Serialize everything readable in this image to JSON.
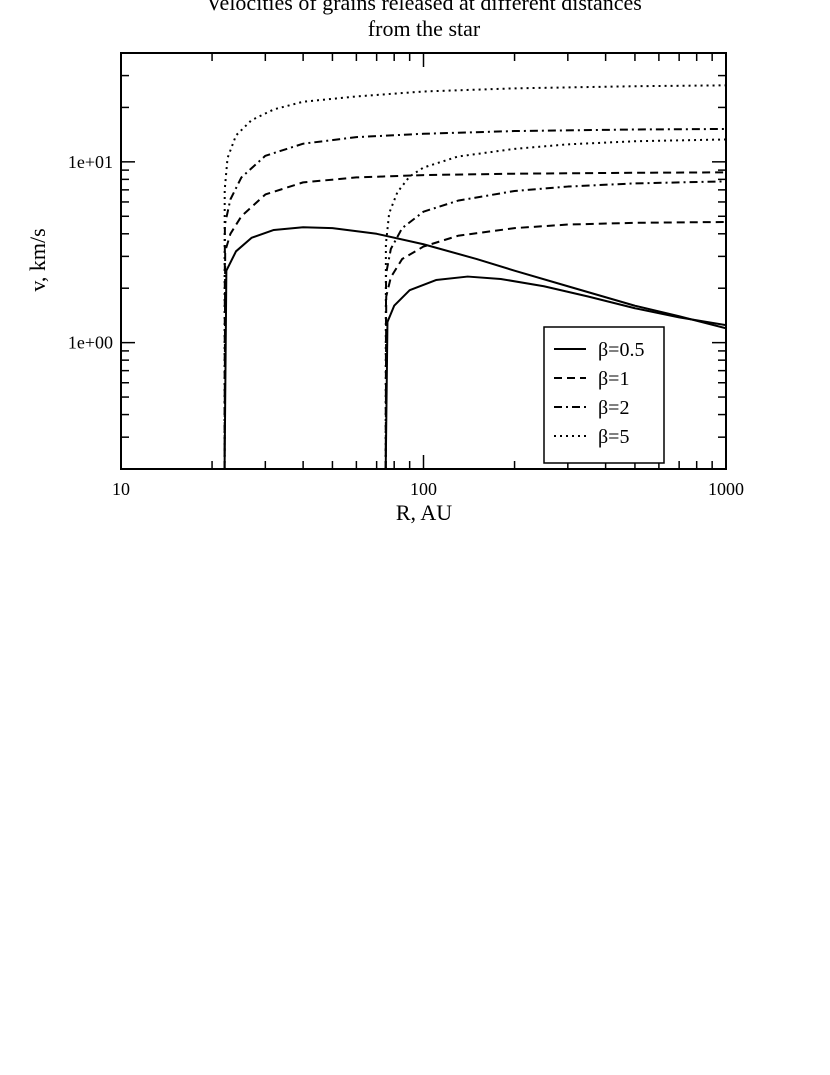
{
  "chart_data": {
    "type": "line",
    "title_line1": "Velocities  of grains released at different distances",
    "title_line2": "from the star",
    "xlabel": "R, AU",
    "ylabel": "v, km/s",
    "xscale": "log",
    "yscale": "log",
    "xlim": [
      10,
      1000
    ],
    "ylim": [
      0.2,
      40
    ],
    "x_ticks": [
      {
        "value": 10,
        "label": "10"
      },
      {
        "value": 100,
        "label": "100"
      },
      {
        "value": 1000,
        "label": "1000"
      }
    ],
    "y_ticks": [
      {
        "value": 1,
        "label": "1e+00"
      },
      {
        "value": 10,
        "label": "1e+01"
      }
    ],
    "grid": false,
    "legend_position": "bottom-right",
    "legend": [
      {
        "label": "β=0.5",
        "style": "solid"
      },
      {
        "label": "β=1",
        "style": "dashed"
      },
      {
        "label": "β=2",
        "style": "dashdot"
      },
      {
        "label": "β=5",
        "style": "dotted"
      }
    ],
    "series": [
      {
        "beta": 0.5,
        "release_R": 22,
        "style": "solid",
        "points": [
          [
            22,
            0.2
          ],
          [
            22.3,
            2.5
          ],
          [
            24,
            3.2
          ],
          [
            27,
            3.8
          ],
          [
            32,
            4.2
          ],
          [
            40,
            4.35
          ],
          [
            50,
            4.3
          ],
          [
            70,
            4.0
          ],
          [
            100,
            3.5
          ],
          [
            150,
            2.9
          ],
          [
            200,
            2.5
          ],
          [
            300,
            2.05
          ],
          [
            500,
            1.6
          ],
          [
            700,
            1.4
          ],
          [
            1000,
            1.2
          ]
        ]
      },
      {
        "beta": 1,
        "release_R": 22,
        "style": "dashed",
        "points": [
          [
            22,
            0.2
          ],
          [
            22.1,
            3.2
          ],
          [
            23,
            4.0
          ],
          [
            25,
            5.0
          ],
          [
            30,
            6.6
          ],
          [
            40,
            7.7
          ],
          [
            60,
            8.2
          ],
          [
            100,
            8.45
          ],
          [
            200,
            8.6
          ],
          [
            500,
            8.7
          ],
          [
            1000,
            8.75
          ]
        ]
      },
      {
        "beta": 2,
        "release_R": 22,
        "style": "dashdot",
        "points": [
          [
            22,
            0.2
          ],
          [
            22.05,
            4.5
          ],
          [
            23,
            6.2
          ],
          [
            25,
            8.2
          ],
          [
            30,
            10.8
          ],
          [
            40,
            12.6
          ],
          [
            60,
            13.7
          ],
          [
            100,
            14.3
          ],
          [
            200,
            14.8
          ],
          [
            500,
            15.1
          ],
          [
            1000,
            15.2
          ]
        ]
      },
      {
        "beta": 5,
        "release_R": 22,
        "style": "dotted",
        "points": [
          [
            22,
            0.2
          ],
          [
            22.02,
            7.0
          ],
          [
            22.5,
            10.5
          ],
          [
            24,
            14.0
          ],
          [
            27,
            17.0
          ],
          [
            32,
            19.5
          ],
          [
            40,
            21.5
          ],
          [
            60,
            23.0
          ],
          [
            100,
            24.5
          ],
          [
            200,
            25.5
          ],
          [
            500,
            26.2
          ],
          [
            1000,
            26.5
          ]
        ]
      },
      {
        "beta": 0.5,
        "release_R": 75,
        "style": "solid",
        "points": [
          [
            75,
            0.2
          ],
          [
            76,
            1.3
          ],
          [
            80,
            1.6
          ],
          [
            90,
            1.95
          ],
          [
            110,
            2.22
          ],
          [
            140,
            2.32
          ],
          [
            180,
            2.25
          ],
          [
            250,
            2.05
          ],
          [
            350,
            1.8
          ],
          [
            500,
            1.55
          ],
          [
            700,
            1.38
          ],
          [
            1000,
            1.25
          ]
        ]
      },
      {
        "beta": 1,
        "release_R": 75,
        "style": "dashed",
        "points": [
          [
            75,
            0.2
          ],
          [
            75.3,
            1.8
          ],
          [
            78,
            2.3
          ],
          [
            85,
            2.9
          ],
          [
            100,
            3.4
          ],
          [
            130,
            3.9
          ],
          [
            200,
            4.3
          ],
          [
            300,
            4.5
          ],
          [
            500,
            4.6
          ],
          [
            1000,
            4.65
          ]
        ]
      },
      {
        "beta": 2,
        "release_R": 75,
        "style": "dashdot",
        "points": [
          [
            75,
            0.2
          ],
          [
            75.2,
            2.4
          ],
          [
            78,
            3.3
          ],
          [
            85,
            4.3
          ],
          [
            100,
            5.3
          ],
          [
            130,
            6.1
          ],
          [
            200,
            6.9
          ],
          [
            300,
            7.3
          ],
          [
            500,
            7.6
          ],
          [
            1000,
            7.8
          ]
        ]
      },
      {
        "beta": 5,
        "release_R": 75,
        "style": "dotted",
        "points": [
          [
            75,
            0.2
          ],
          [
            75.1,
            3.5
          ],
          [
            77,
            5.2
          ],
          [
            82,
            6.8
          ],
          [
            90,
            8.3
          ],
          [
            100,
            9.3
          ],
          [
            130,
            10.7
          ],
          [
            200,
            11.8
          ],
          [
            300,
            12.5
          ],
          [
            500,
            13.0
          ],
          [
            1000,
            13.3
          ]
        ]
      }
    ]
  }
}
